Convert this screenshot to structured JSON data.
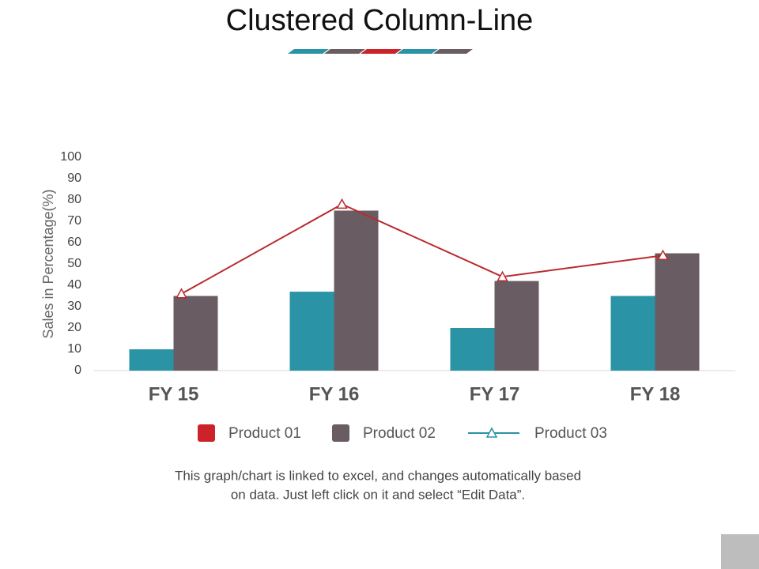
{
  "chart_data": {
    "type": "bar-line",
    "title": "Clustered Column-Line",
    "y_label": "Sales in Percentage(%)",
    "categories": [
      "FY 15",
      "FY 16",
      "FY 17",
      "FY 18"
    ],
    "series": [
      {
        "name": "Product 01",
        "type": "bar",
        "color": "#2a93a6",
        "legend_color": "#cc2229",
        "values": [
          10,
          37,
          20,
          35
        ]
      },
      {
        "name": "Product 02",
        "type": "bar",
        "color": "#695c62",
        "legend_color": "#695c62",
        "values": [
          35,
          75,
          42,
          55
        ]
      },
      {
        "name": "Product 03",
        "type": "line",
        "color": "#b92b2f",
        "legend_color": "#2a93a6",
        "values": [
          36,
          78,
          44,
          54
        ]
      }
    ],
    "ylim": [
      0,
      100
    ],
    "yticks": [
      0,
      10,
      20,
      30,
      40,
      50,
      60,
      70,
      80,
      90,
      100
    ]
  },
  "footnote": [
    "This graph/chart is linked to excel, and changes automatically based",
    "on data. Just left click on it and select “Edit Data”."
  ]
}
